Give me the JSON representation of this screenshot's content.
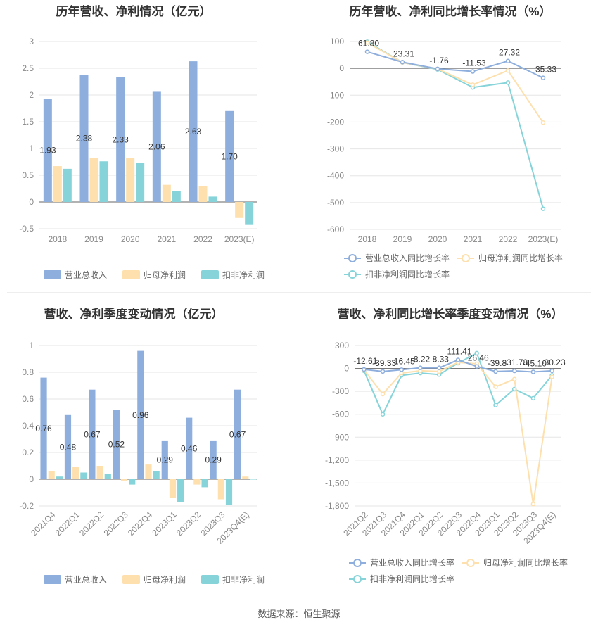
{
  "colors": {
    "revenue": "#8eaedd",
    "net_profit": "#fde0ae",
    "deducted_profit": "#86d4d9",
    "grid": "#e6e6e6",
    "axis": "#666666",
    "tick": "#888888",
    "title": "#333333",
    "label": "#333333"
  },
  "source_text": "数据来源：恒生聚源",
  "chart_data": [
    {
      "id": "annual-bar",
      "type": "bar",
      "title": "历年营收、净利情况（亿元）",
      "categories": [
        "2018",
        "2019",
        "2020",
        "2021",
        "2022",
        "2023(E)"
      ],
      "series": [
        {
          "name": "营业总收入",
          "color_key": "revenue",
          "values": [
            1.93,
            2.38,
            2.33,
            2.06,
            2.63,
            1.7
          ],
          "labels": [
            "1.93",
            "2.38",
            "2.33",
            "2.06",
            "2.63",
            "1.70"
          ]
        },
        {
          "name": "归母净利润",
          "color_key": "net_profit",
          "values": [
            0.67,
            0.82,
            0.82,
            0.32,
            0.29,
            -0.3
          ]
        },
        {
          "name": "扣非净利润",
          "color_key": "deducted_profit",
          "values": [
            0.62,
            0.76,
            0.73,
            0.21,
            0.1,
            -0.43
          ]
        }
      ],
      "ylim": [
        -0.5,
        3
      ],
      "yticks": [
        -0.5,
        0,
        0.5,
        1,
        1.5,
        2,
        2.5,
        3
      ],
      "ytick_labels": [
        "-0.5",
        "0",
        "0.5",
        "1",
        "1.5",
        "2",
        "2.5",
        "3"
      ],
      "grid": true,
      "legend": "bottom"
    },
    {
      "id": "annual-line",
      "type": "line",
      "title": "历年营收、净利同比增长率情况（%）",
      "categories": [
        "2018",
        "2019",
        "2020",
        "2021",
        "2022",
        "2023(E)"
      ],
      "series": [
        {
          "name": "营业总收入同比增长率",
          "color_key": "revenue",
          "values": [
            61.8,
            23.31,
            -1.76,
            -11.53,
            27.32,
            -35.33
          ],
          "labels": [
            "61.80",
            "23.31",
            "-1.76",
            "-11.53",
            "27.32",
            "-35.33"
          ]
        },
        {
          "name": "归母净利润同比增长率",
          "color_key": "net_profit",
          "values": [
            96,
            22,
            -2,
            -61,
            -8,
            -202
          ]
        },
        {
          "name": "扣非净利润同比增长率",
          "color_key": "deducted_profit",
          "values": [
            99,
            22,
            -4,
            -71,
            -53,
            -523
          ]
        }
      ],
      "ylim": [
        -600,
        100
      ],
      "yticks": [
        -600,
        -500,
        -400,
        -300,
        -200,
        -100,
        0,
        100
      ],
      "ytick_labels": [
        "-600",
        "-500",
        "-400",
        "-300",
        "-200",
        "-100",
        "0",
        "100"
      ],
      "grid": true,
      "legend": "bottom"
    },
    {
      "id": "quarterly-bar",
      "type": "bar",
      "title": "营收、净利季度变动情况（亿元）",
      "categories": [
        "2021Q4",
        "2022Q1",
        "2022Q2",
        "2022Q3",
        "2022Q4",
        "2023Q1",
        "2023Q2",
        "2023Q3",
        "2023Q4(E)"
      ],
      "series": [
        {
          "name": "营业总收入",
          "color_key": "revenue",
          "values": [
            0.76,
            0.48,
            0.67,
            0.52,
            0.96,
            0.29,
            0.46,
            0.29,
            0.67
          ],
          "labels": [
            "0.76",
            "0.48",
            "0.67",
            "0.52",
            "0.96",
            "0.29",
            "0.46",
            "0.29",
            "0.67"
          ]
        },
        {
          "name": "归母净利润",
          "color_key": "net_profit",
          "values": [
            0.06,
            0.09,
            0.1,
            -0.01,
            0.11,
            -0.14,
            -0.04,
            -0.15,
            0.02
          ]
        },
        {
          "name": "扣非净利润",
          "color_key": "deducted_profit",
          "values": [
            0.02,
            0.05,
            0.04,
            -0.04,
            0.06,
            -0.17,
            -0.06,
            -0.19,
            0.0
          ]
        }
      ],
      "ylim": [
        -0.2,
        1
      ],
      "yticks": [
        -0.2,
        0,
        0.2,
        0.4,
        0.6,
        0.8,
        1
      ],
      "ytick_labels": [
        "-0.2",
        "0",
        "0.2",
        "0.4",
        "0.6",
        "0.8",
        "1"
      ],
      "grid": true,
      "legend": "bottom"
    },
    {
      "id": "quarterly-line",
      "type": "line",
      "title": "营收、净利同比增长率季度变动情况（%）",
      "categories": [
        "2021Q2",
        "2021Q3",
        "2021Q4",
        "2022Q1",
        "2022Q2",
        "2022Q3",
        "2022Q4",
        "2023Q1",
        "2023Q2",
        "2023Q3",
        "2023Q4(E)"
      ],
      "series": [
        {
          "name": "营业总收入同比增长率",
          "color_key": "revenue",
          "values": [
            -12.61,
            -39.33,
            -16.45,
            8.22,
            8.33,
            111.41,
            26.46,
            -39.8,
            -31.78,
            -45.1,
            -30.23
          ],
          "labels": [
            "-12.61",
            "-39.33",
            "-16.45",
            "8.22",
            "8.33",
            "111.41",
            "26.46",
            "-39.8",
            "-31.78",
            "-45.10",
            "-30.23"
          ]
        },
        {
          "name": "归母净利润同比增长率",
          "color_key": "net_profit",
          "values": [
            -20,
            -335,
            -60,
            -30,
            -40,
            80,
            60,
            -240,
            -140,
            -1775,
            -110
          ]
        },
        {
          "name": "扣非净利润同比增长率",
          "color_key": "deducted_profit",
          "values": [
            -30,
            -600,
            -90,
            -60,
            -80,
            70,
            200,
            -480,
            -270,
            -390,
            -90
          ]
        }
      ],
      "ylim": [
        -1800,
        300
      ],
      "yticks": [
        -1800,
        -1500,
        -1200,
        -900,
        -600,
        -300,
        0,
        300
      ],
      "ytick_labels": [
        "-1,800",
        "-1,500",
        "-1,200",
        "-900",
        "-600",
        "-300",
        "0",
        "300"
      ],
      "grid": true,
      "legend": "bottom"
    }
  ]
}
